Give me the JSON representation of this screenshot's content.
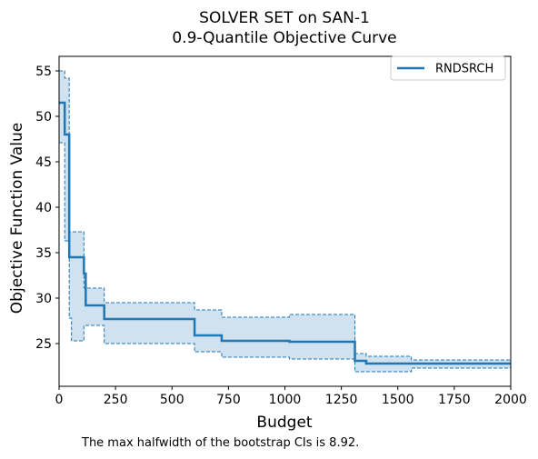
{
  "chart_data": {
    "type": "line",
    "title": "SOLVER SET on SAN-1",
    "subtitle": "0.9-Quantile Objective Curve",
    "xlabel": "Budget",
    "ylabel": "Objective Function Value",
    "xlim": [
      0,
      2000
    ],
    "ylim": [
      20.3,
      56.6
    ],
    "xticks": [
      0,
      250,
      500,
      750,
      1000,
      1250,
      1500,
      1750,
      2000
    ],
    "yticks": [
      25,
      30,
      35,
      40,
      45,
      50,
      55
    ],
    "grid": false,
    "legend_position": "top-right",
    "series": [
      {
        "name": "RNDSRCH",
        "color": "#1f77b4",
        "step_x": [
          0,
          25,
          45,
          55,
          110,
          118,
          120,
          200,
          600,
          720,
          1020,
          1310,
          1360,
          1560,
          2000
        ],
        "values": [
          51.5,
          48.0,
          34.5,
          34.5,
          32.7,
          29.2,
          29.2,
          27.7,
          25.9,
          25.3,
          25.2,
          23.1,
          22.8,
          22.8,
          22.8
        ],
        "ci_upper": [
          55.0,
          54.2,
          37.3,
          37.3,
          31.1,
          31.1,
          31.1,
          29.5,
          28.7,
          27.9,
          28.2,
          23.9,
          23.6,
          23.2,
          23.2
        ],
        "ci_lower": [
          47.1,
          36.3,
          27.8,
          25.3,
          27.0,
          27.0,
          27.0,
          25.0,
          24.1,
          23.5,
          23.3,
          21.9,
          21.9,
          22.3,
          22.3
        ]
      }
    ],
    "ci_fill_color": "#d0e1ef"
  },
  "caption": "The max halfwidth of the bootstrap CIs is 8.92."
}
